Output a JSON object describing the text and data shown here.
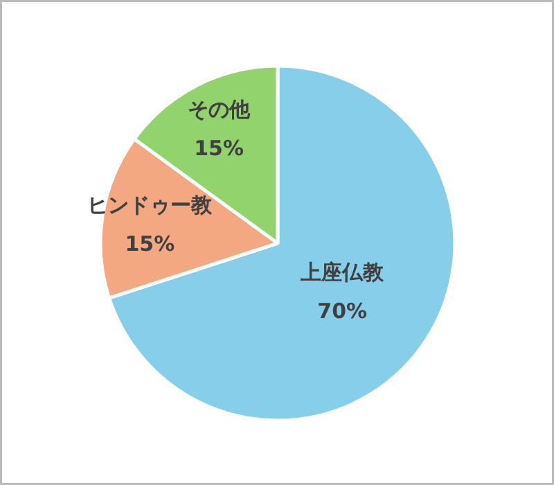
{
  "chart_data": {
    "type": "pie",
    "categories": [
      "上座仏教",
      "ヒンドゥー教",
      "その他"
    ],
    "values": [
      70,
      15,
      15
    ],
    "value_labels": [
      "70%",
      "15%",
      "15%"
    ],
    "colors": [
      "#87ceeb",
      "#f4a882",
      "#92d36e"
    ]
  }
}
